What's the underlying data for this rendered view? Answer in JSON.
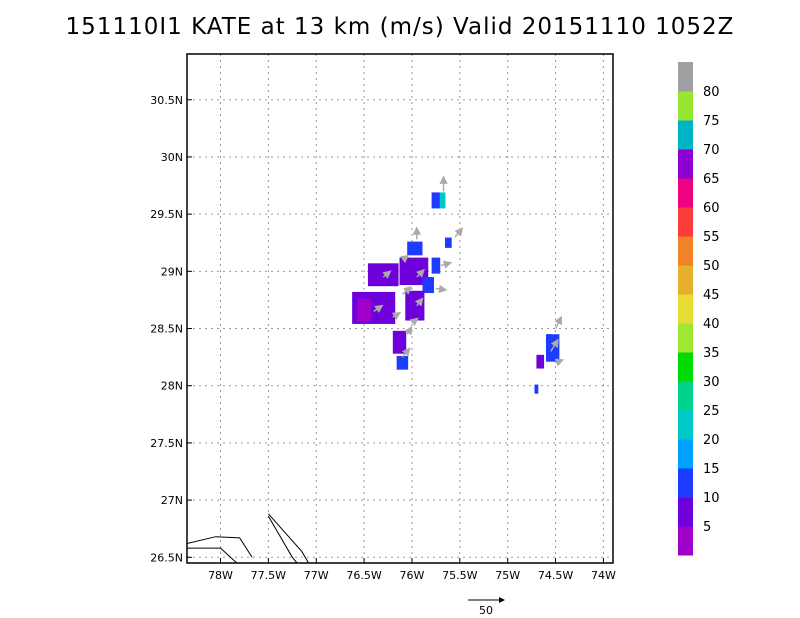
{
  "chart_data": {
    "type": "heatmap",
    "title": "151110I1 KATE at 13 km (m/s) Valid 20151110 1052Z",
    "xlim": [
      -78.35,
      -73.9
    ],
    "ylim": [
      26.45,
      30.9
    ],
    "x_ticks": [
      -78,
      -77.5,
      -77,
      -76.5,
      -76,
      -75.5,
      -75,
      -74.5,
      -74
    ],
    "x_tick_labels": [
      "78W",
      "77.5W",
      "77W",
      "76.5W",
      "76W",
      "75.5W",
      "75W",
      "74.5W",
      "74W"
    ],
    "y_ticks": [
      26.5,
      27,
      27.5,
      28,
      28.5,
      29,
      29.5,
      30,
      30.5
    ],
    "y_tick_labels": [
      "26.5N",
      "27N",
      "27.5N",
      "28N",
      "28.5N",
      "29N",
      "29.5N",
      "30N",
      "30.5N"
    ],
    "grid": true,
    "colorbar": {
      "levels": [
        0,
        5,
        10,
        15,
        20,
        25,
        30,
        35,
        40,
        45,
        50,
        55,
        60,
        65,
        70,
        75,
        80,
        85
      ],
      "labels": [
        "5",
        "10",
        "15",
        "20",
        "25",
        "30",
        "35",
        "40",
        "45",
        "50",
        "55",
        "60",
        "65",
        "70",
        "75",
        "80"
      ],
      "colors": [
        "#a000c8",
        "#6e00dc",
        "#1e3cff",
        "#00a0ff",
        "#00c8c8",
        "#00d28c",
        "#00dc00",
        "#a0e632",
        "#e6dc32",
        "#e6af2d",
        "#f08228",
        "#fa3c3c",
        "#f00082",
        "#8c00d2",
        "#00b4c8",
        "#96e632",
        "#a0a0a0"
      ]
    },
    "cells": [
      {
        "lon": -75.75,
        "lat": 29.62,
        "w": 0.09,
        "h": 0.14,
        "value": 12
      },
      {
        "lon": -75.68,
        "lat": 29.62,
        "w": 0.06,
        "h": 0.14,
        "value": 22
      },
      {
        "lon": -75.62,
        "lat": 29.25,
        "w": 0.07,
        "h": 0.09,
        "value": 12
      },
      {
        "lon": -75.97,
        "lat": 29.2,
        "w": 0.16,
        "h": 0.12,
        "value": 12
      },
      {
        "lon": -76.3,
        "lat": 28.97,
        "w": 0.32,
        "h": 0.2,
        "value": 6
      },
      {
        "lon": -75.98,
        "lat": 29.0,
        "w": 0.3,
        "h": 0.24,
        "value": 9
      },
      {
        "lon": -75.83,
        "lat": 28.88,
        "w": 0.12,
        "h": 0.14,
        "value": 14
      },
      {
        "lon": -75.75,
        "lat": 29.05,
        "w": 0.09,
        "h": 0.14,
        "value": 12
      },
      {
        "lon": -76.4,
        "lat": 28.68,
        "w": 0.45,
        "h": 0.28,
        "value": 7
      },
      {
        "lon": -76.5,
        "lat": 28.66,
        "w": 0.14,
        "h": 0.2,
        "value": 4
      },
      {
        "lon": -75.97,
        "lat": 28.7,
        "w": 0.2,
        "h": 0.26,
        "value": 6
      },
      {
        "lon": -76.13,
        "lat": 28.38,
        "w": 0.14,
        "h": 0.2,
        "value": 8
      },
      {
        "lon": -76.1,
        "lat": 28.2,
        "w": 0.12,
        "h": 0.12,
        "value": 12
      },
      {
        "lon": -74.53,
        "lat": 28.33,
        "w": 0.14,
        "h": 0.24,
        "value": 14
      },
      {
        "lon": -74.57,
        "lat": 28.34,
        "w": 0.06,
        "h": 0.22,
        "value": 12
      },
      {
        "lon": -74.66,
        "lat": 28.21,
        "w": 0.08,
        "h": 0.12,
        "value": 8
      },
      {
        "lon": -74.7,
        "lat": 27.97,
        "w": 0.04,
        "h": 0.08,
        "value": 12
      }
    ],
    "wind_vectors": [
      {
        "lon": -75.67,
        "lat": 29.7,
        "u": 0,
        "v": 20
      },
      {
        "lon": -75.55,
        "lat": 29.3,
        "u": 10,
        "v": 12
      },
      {
        "lon": -75.95,
        "lat": 29.28,
        "u": 0,
        "v": 16
      },
      {
        "lon": -76.1,
        "lat": 29.1,
        "u": 8,
        "v": 6
      },
      {
        "lon": -76.3,
        "lat": 28.95,
        "u": 10,
        "v": 8
      },
      {
        "lon": -76.1,
        "lat": 28.8,
        "u": 12,
        "v": 10
      },
      {
        "lon": -75.95,
        "lat": 28.95,
        "u": 10,
        "v": 10
      },
      {
        "lon": -75.75,
        "lat": 28.85,
        "u": 14,
        "v": -2
      },
      {
        "lon": -75.95,
        "lat": 28.7,
        "u": 8,
        "v": 10
      },
      {
        "lon": -76.2,
        "lat": 28.6,
        "u": 10,
        "v": 6
      },
      {
        "lon": -76.4,
        "lat": 28.65,
        "u": 12,
        "v": 8
      },
      {
        "lon": -75.7,
        "lat": 29.05,
        "u": 14,
        "v": 4
      },
      {
        "lon": -76.05,
        "lat": 28.45,
        "u": 6,
        "v": 10
      },
      {
        "lon": -76.1,
        "lat": 28.25,
        "u": 10,
        "v": 12
      },
      {
        "lon": -76.0,
        "lat": 28.55,
        "u": 8,
        "v": 6
      },
      {
        "lon": -74.5,
        "lat": 28.5,
        "u": 8,
        "v": 16
      },
      {
        "lon": -74.55,
        "lat": 28.3,
        "u": 10,
        "v": 16
      },
      {
        "lon": -74.5,
        "lat": 28.2,
        "u": 10,
        "v": 4
      }
    ],
    "reference_vector": {
      "label": "50",
      "value": 50
    },
    "coastlines": [
      [
        [
          -78.35,
          26.62
        ],
        [
          -78.05,
          26.68
        ],
        [
          -77.8,
          26.67
        ],
        [
          -77.67,
          26.5
        ]
      ],
      [
        [
          -78.35,
          26.58
        ],
        [
          -78.0,
          26.58
        ],
        [
          -77.83,
          26.45
        ]
      ],
      [
        [
          -77.5,
          26.88
        ],
        [
          -77.15,
          26.55
        ],
        [
          -77.08,
          26.45
        ]
      ],
      [
        [
          -77.5,
          26.86
        ],
        [
          -77.25,
          26.5
        ],
        [
          -77.2,
          26.45
        ]
      ]
    ]
  }
}
